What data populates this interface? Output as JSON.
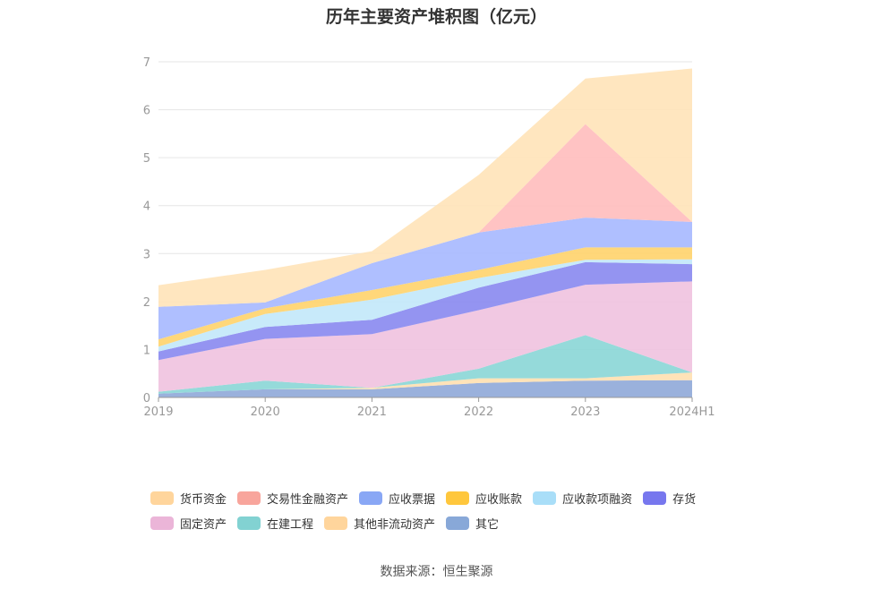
{
  "title": "历年主要资产堆积图（亿元）",
  "source": "数据来源：恒生聚源",
  "chart_data": {
    "type": "area",
    "stacked": true,
    "title": "历年主要资产堆积图（亿元）",
    "x": [
      "2019",
      "2020",
      "2021",
      "2022",
      "2023",
      "2024H1"
    ],
    "ylim": [
      0,
      7
    ],
    "yticks": [
      "0",
      "1",
      "2",
      "3",
      "4",
      "5",
      "6",
      "7"
    ],
    "grid": true,
    "legend_position": "bottom",
    "series": [
      {
        "name": "其它",
        "color": "#8fa9d8",
        "values": [
          0.08,
          0.17,
          0.17,
          0.3,
          0.35,
          0.36
        ]
      },
      {
        "name": "其他非流动资产",
        "color": "#ffe0b0",
        "values": [
          0.0,
          0.0,
          0.03,
          0.1,
          0.05,
          0.16
        ]
      },
      {
        "name": "在建工程",
        "color": "#8ad6d6",
        "values": [
          0.04,
          0.18,
          0.0,
          0.2,
          0.9,
          0.0
        ]
      },
      {
        "name": "固定资产",
        "color": "#f0c2df",
        "values": [
          0.66,
          0.87,
          1.12,
          1.22,
          1.05,
          1.9
        ]
      },
      {
        "name": "存货",
        "color": "#8888f0",
        "values": [
          0.18,
          0.25,
          0.3,
          0.47,
          0.47,
          0.36
        ]
      },
      {
        "name": "应收款项融资",
        "color": "#c2e8fa",
        "values": [
          0.1,
          0.27,
          0.42,
          0.2,
          0.05,
          0.1
        ]
      },
      {
        "name": "应收账款",
        "color": "#ffd36b",
        "values": [
          0.15,
          0.12,
          0.2,
          0.17,
          0.26,
          0.25
        ]
      },
      {
        "name": "应收票据",
        "color": "#a6b8ff",
        "values": [
          0.68,
          0.12,
          0.56,
          0.78,
          0.62,
          0.53
        ]
      },
      {
        "name": "交易性金融资产",
        "color": "#ffbdbd",
        "values": [
          0.0,
          0.0,
          0.0,
          0.0,
          1.95,
          0.0
        ]
      },
      {
        "name": "货币资金",
        "color": "#ffe3b8",
        "values": [
          0.45,
          0.68,
          0.25,
          1.2,
          0.95,
          3.2
        ]
      }
    ]
  },
  "legend": [
    [
      {
        "name": "货币资金",
        "color": "#ffd59c"
      },
      {
        "name": "交易性金融资产",
        "color": "#f8a59c"
      },
      {
        "name": "应收票据",
        "color": "#89a7f5"
      },
      {
        "name": "应收账款",
        "color": "#ffc73d"
      },
      {
        "name": "应收款项融资",
        "color": "#a9def8"
      },
      {
        "name": "存货",
        "color": "#7777ee"
      }
    ],
    [
      {
        "name": "固定资产",
        "color": "#ebb5d8"
      },
      {
        "name": "在建工程",
        "color": "#82d2d2"
      },
      {
        "name": "其他非流动资产",
        "color": "#ffd59c"
      },
      {
        "name": "其它",
        "color": "#88a8d8"
      }
    ]
  ]
}
